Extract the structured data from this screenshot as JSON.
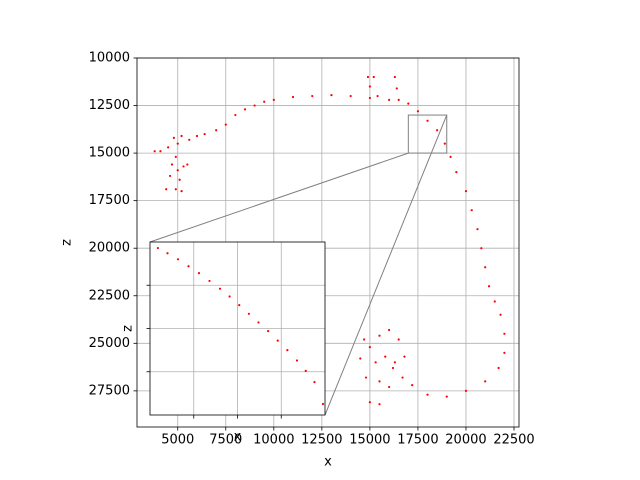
{
  "chart_data": [
    {
      "type": "scatter",
      "xlabel": "x",
      "ylabel": "z",
      "color": "#ff0000",
      "grid": true,
      "tick_labels": true,
      "y_inverted": true,
      "xlim": [
        2880,
        22760
      ],
      "ylim": [
        29400,
        10000
      ],
      "xticks": [
        5000,
        7500,
        10000,
        12500,
        15000,
        17500,
        20000,
        22500
      ],
      "yticks": [
        10000,
        12500,
        15000,
        17500,
        20000,
        22500,
        25000,
        27500
      ],
      "x": [
        4100,
        4500,
        4800,
        5000,
        5200,
        4900,
        4700,
        5000,
        5300,
        4600,
        5100,
        4400,
        4900,
        5200,
        5500,
        5600,
        6000,
        6400,
        3800,
        7000,
        7500,
        8000,
        8500,
        9000,
        9500,
        10000,
        11000,
        12000,
        13000,
        14000,
        15000,
        16000,
        17000,
        17500,
        18000,
        18500,
        18900,
        19200,
        19500,
        20000,
        20300,
        20600,
        20800,
        21000,
        21200,
        21500,
        21800,
        22000,
        22000,
        21700,
        21000,
        20000,
        19000,
        18000,
        17200,
        16700,
        16200,
        14500,
        15000,
        15500,
        16000,
        16500,
        15300,
        15800,
        16300,
        14800,
        15500,
        16000,
        15000,
        15500,
        16800,
        14700,
        14900,
        15000,
        15200,
        15400,
        16300,
        16400,
        16500
      ],
      "y": [
        14900,
        14700,
        14200,
        14500,
        14100,
        15200,
        15600,
        15900,
        15700,
        16200,
        16400,
        16900,
        16900,
        17000,
        15600,
        14300,
        14100,
        14000,
        14900,
        13800,
        13500,
        13000,
        12700,
        12500,
        12300,
        12200,
        12050,
        12000,
        11950,
        12000,
        12100,
        12200,
        12400,
        12800,
        13300,
        13800,
        14500,
        15200,
        16000,
        17000,
        18000,
        19000,
        20000,
        21000,
        22000,
        22800,
        23500,
        24500,
        25500,
        26300,
        27000,
        27500,
        27800,
        27700,
        27200,
        26800,
        26300,
        25800,
        25200,
        24600,
        24300,
        24800,
        26000,
        25700,
        26000,
        26800,
        27000,
        27300,
        28100,
        28200,
        25700,
        24800,
        11000,
        11500,
        11000,
        12000,
        11000,
        11600,
        12200
      ]
    },
    {
      "type": "scatter",
      "xlabel": "x",
      "ylabel": "z",
      "color": "#ff0000",
      "grid": true,
      "tick_labels": false,
      "y_inverted": true,
      "xlim": [
        17000,
        19000
      ],
      "ylim": [
        15000,
        13000
      ],
      "xticks": [
        17500,
        18000,
        18500
      ],
      "yticks": [
        13500,
        14000,
        14500
      ],
      "x": [
        17090,
        17200,
        17320,
        17440,
        17560,
        17680,
        17800,
        17910,
        18020,
        18130,
        18240,
        18350,
        18460,
        18570,
        18680,
        18780,
        18880,
        18977
      ],
      "y": [
        13070,
        13130,
        13200,
        13280,
        13360,
        13450,
        13540,
        13630,
        13730,
        13830,
        13930,
        14030,
        14140,
        14250,
        14370,
        14490,
        14620,
        14873
      ]
    }
  ]
}
